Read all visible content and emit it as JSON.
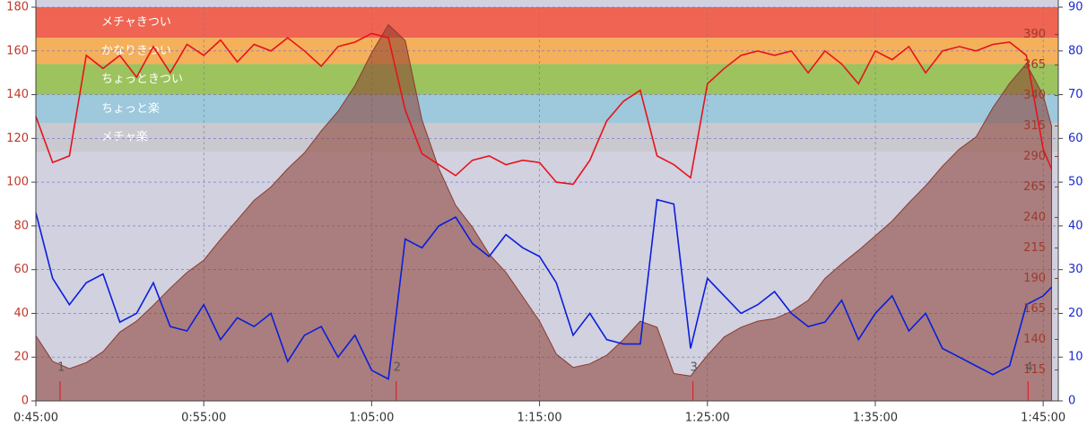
{
  "chart_data": {
    "type": "line",
    "x": [
      45,
      46,
      47,
      48,
      49,
      50,
      51,
      52,
      53,
      54,
      55,
      56,
      57,
      58,
      59,
      60,
      61,
      62,
      63,
      64,
      65,
      66,
      67,
      68,
      69,
      70,
      71,
      72,
      73,
      74,
      75,
      76,
      77,
      78,
      79,
      80,
      81,
      82,
      83,
      84,
      85,
      86,
      87,
      88,
      89,
      90,
      91,
      92,
      93,
      94,
      95,
      96,
      97,
      98,
      99,
      100,
      101,
      102,
      103,
      104,
      105,
      105.5
    ],
    "xlim": [
      45,
      105.9
    ],
    "xticks": [
      {
        "value": 45,
        "label": "0:45:00"
      },
      {
        "value": 55,
        "label": "0:55:00"
      },
      {
        "value": 65,
        "label": "1:05:00"
      },
      {
        "value": 75,
        "label": "1:15:00"
      },
      {
        "value": 85,
        "label": "1:25:00"
      },
      {
        "value": 95,
        "label": "1:35:00"
      },
      {
        "value": 105,
        "label": "1:45:00"
      }
    ],
    "ylim": [
      0,
      180
    ],
    "yticks": [
      0,
      20,
      40,
      60,
      80,
      100,
      120,
      140,
      160,
      180
    ],
    "y2lim": [
      0,
      90
    ],
    "y2ticks": [
      0,
      10,
      20,
      30,
      40,
      50,
      60,
      70,
      80,
      90
    ],
    "y3lim": [
      89.6,
      412.4
    ],
    "y3ticks": [
      115,
      140,
      165,
      190,
      215,
      240,
      265,
      290,
      315,
      340,
      365,
      390
    ],
    "grid": true,
    "zones": [
      {
        "label": "メチャきつい",
        "low": 166,
        "high": 180,
        "color": "#ef6452"
      },
      {
        "label": "かなりきつい",
        "low": 154,
        "high": 166,
        "color": "#f4b05a"
      },
      {
        "label": "ちょっときつい",
        "low": 140,
        "high": 154,
        "color": "#9cc35e"
      },
      {
        "label": "ちょっと楽",
        "low": 127,
        "high": 140,
        "color": "#9ec8dc"
      },
      {
        "label": "メチャ楽",
        "low": 114,
        "high": 127,
        "color": "#c9c9cf"
      }
    ],
    "series": [
      {
        "axis": "y3",
        "color": "#8b3a2e",
        "area": true,
        "values": [
          143,
          122,
          116,
          121,
          130,
          146,
          155,
          168,
          182,
          195,
          205,
          222,
          238,
          254,
          265,
          280,
          293,
          311,
          327,
          348,
          375,
          398,
          385,
          320,
          280,
          250,
          232,
          210,
          195,
          175,
          155,
          128,
          117,
          120,
          127,
          140,
          155,
          150,
          112,
          110,
          127,
          142,
          150,
          155,
          157,
          163,
          172,
          190,
          202,
          213,
          225,
          237,
          252,
          266,
          282,
          296,
          306,
          330,
          350,
          366,
          340,
          315
        ]
      },
      {
        "axis": "y",
        "color": "#e8121c",
        "values": [
          130,
          109,
          112,
          158,
          152,
          158,
          148,
          162,
          150,
          163,
          158,
          165,
          155,
          163,
          160,
          166,
          160,
          153,
          162,
          164,
          168,
          166,
          133,
          113,
          108,
          103,
          110,
          112,
          108,
          110,
          109,
          100,
          99,
          110,
          128,
          137,
          142,
          112,
          108,
          102,
          145,
          152,
          158,
          160,
          158,
          160,
          150,
          160,
          154,
          145,
          160,
          156,
          162,
          150,
          160,
          162,
          160,
          163,
          164,
          158,
          115,
          106
        ]
      },
      {
        "axis": "y2",
        "color": "#0a1edc",
        "values": [
          43,
          28,
          22,
          27,
          29,
          18,
          20,
          27,
          17,
          16,
          22,
          14,
          19,
          17,
          20,
          9,
          15,
          17,
          10,
          15,
          7,
          5,
          37,
          35,
          40,
          42,
          36,
          33,
          38,
          35,
          33,
          27,
          15,
          20,
          14,
          13,
          13,
          46,
          45,
          12,
          28,
          24,
          20,
          22,
          25,
          20,
          17,
          18,
          23,
          14,
          20,
          24,
          16,
          20,
          12,
          10,
          8,
          6,
          8,
          22,
          24,
          26
        ]
      }
    ],
    "laps": {
      "x": [
        46.44,
        66.46,
        84.14,
        104.1
      ],
      "labels": [
        "1",
        "2",
        "3",
        "4"
      ]
    }
  }
}
